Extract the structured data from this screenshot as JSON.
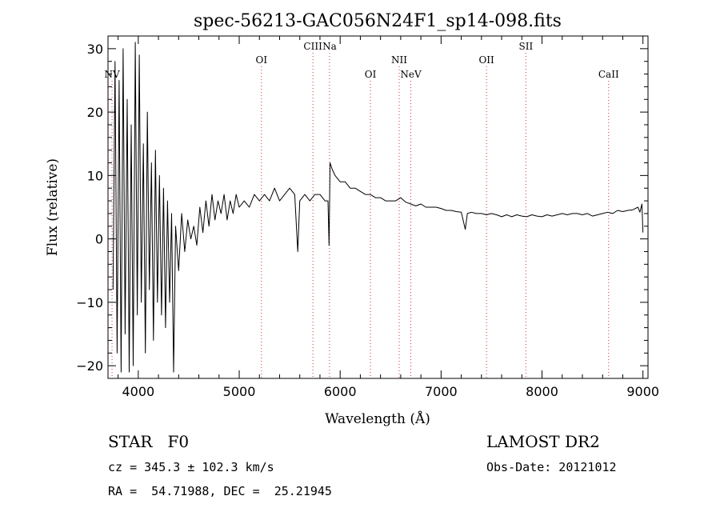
{
  "chart_data": {
    "type": "line",
    "title": "spec-56213-GAC056N24F1_sp14-098.fits",
    "xlabel": "Wavelength (Å)",
    "ylabel": "Flux (relative)",
    "xlim": [
      3700,
      9050
    ],
    "ylim": [
      -22,
      32
    ],
    "xticks": [
      4000,
      5000,
      6000,
      7000,
      8000,
      9000
    ],
    "yticks": [
      -20,
      -10,
      0,
      10,
      20,
      30
    ],
    "grid": false,
    "legend": "none",
    "line_color": "#000000",
    "marker_color": "#cc3333",
    "emission_lines": [
      {
        "name": "NV",
        "wavelength": 3740,
        "row": 2
      },
      {
        "name": "OI",
        "wavelength": 5220,
        "row": 1
      },
      {
        "name": "CIII",
        "wavelength": 5730,
        "row": 0
      },
      {
        "name": "Na",
        "wavelength": 5895,
        "row": 0
      },
      {
        "name": "OI",
        "wavelength": 6300,
        "row": 2
      },
      {
        "name": "NII",
        "wavelength": 6585,
        "row": 1
      },
      {
        "name": "NeV",
        "wavelength": 6700,
        "row": 2
      },
      {
        "name": "OII",
        "wavelength": 7450,
        "row": 1
      },
      {
        "name": "SII",
        "wavelength": 7840,
        "row": 0
      },
      {
        "name": "CaII",
        "wavelength": 8660,
        "row": 2
      }
    ],
    "series": [
      {
        "x": [
          3750,
          3770,
          3790,
          3810,
          3830,
          3850,
          3870,
          3890,
          3910,
          3930,
          3950,
          3970,
          3990,
          4010,
          4030,
          4050,
          4070,
          4090,
          4110,
          4130,
          4150,
          4170,
          4190,
          4210,
          4230,
          4250,
          4270,
          4290,
          4310,
          4330,
          4350,
          4370,
          4400,
          4430,
          4460,
          4490,
          4520,
          4550,
          4580,
          4610,
          4640,
          4670,
          4700,
          4730,
          4760,
          4790,
          4820,
          4850,
          4880,
          4910,
          4940,
          4970,
          5000,
          5050,
          5100,
          5150,
          5200,
          5250,
          5300,
          5350,
          5400,
          5450,
          5500,
          5550,
          5580,
          5600,
          5650,
          5700,
          5750,
          5800,
          5850,
          5880,
          5890,
          5900,
          5920,
          5950,
          6000,
          6050,
          6100,
          6150,
          6200,
          6250,
          6300,
          6350,
          6400,
          6450,
          6500,
          6550,
          6600,
          6650,
          6700,
          6750,
          6800,
          6850,
          6900,
          6950,
          7000,
          7050,
          7100,
          7150,
          7200,
          7240,
          7260,
          7300,
          7350,
          7400,
          7450,
          7500,
          7550,
          7600,
          7650,
          7700,
          7750,
          7800,
          7850,
          7900,
          7950,
          8000,
          8050,
          8100,
          8150,
          8200,
          8250,
          8300,
          8350,
          8400,
          8450,
          8500,
          8550,
          8600,
          8650,
          8700,
          8750,
          8800,
          8850,
          8900,
          8950,
          8970,
          8990,
          9000
        ],
        "y": [
          -8,
          28,
          -18,
          25,
          -21,
          30,
          -15,
          22,
          -21,
          18,
          -20,
          31,
          -12,
          29,
          -10,
          15,
          -18,
          20,
          -8,
          12,
          -16,
          14,
          -10,
          10,
          -12,
          8,
          -14,
          6,
          -10,
          4,
          -21,
          2,
          -5,
          4,
          -2,
          3,
          0,
          2,
          -1,
          5,
          1,
          6,
          2,
          7,
          3,
          6,
          4,
          7,
          3,
          6,
          4,
          7,
          5,
          6,
          5,
          7,
          6,
          7,
          6,
          8,
          6,
          7,
          8,
          7,
          -2,
          6,
          7,
          6,
          7,
          7,
          6,
          6,
          -1,
          12,
          11,
          10,
          9,
          9,
          8,
          8,
          7.5,
          7,
          7,
          6.5,
          6.5,
          6,
          6,
          6,
          6.5,
          5.8,
          5.5,
          5.2,
          5.5,
          5,
          5,
          5,
          4.8,
          4.5,
          4.5,
          4.3,
          4.2,
          1.5,
          4,
          4.2,
          4,
          4,
          3.8,
          4,
          3.8,
          3.5,
          3.8,
          3.5,
          3.8,
          3.6,
          3.5,
          3.8,
          3.6,
          3.5,
          3.8,
          3.6,
          3.8,
          4,
          3.8,
          4,
          4,
          3.8,
          4,
          3.6,
          3.8,
          4,
          4.2,
          4,
          4.5,
          4.3,
          4.5,
          4.6,
          5,
          4.2,
          5.5,
          1
        ]
      }
    ]
  },
  "footer": {
    "object_class": "STAR   F0",
    "survey": "LAMOST DR2",
    "redshift": "cz = 345.3 ± 102.3 km/s",
    "obs_date": "Obs-Date: 20121012",
    "coords": "RA =  54.71988, DEC =  25.21945"
  }
}
